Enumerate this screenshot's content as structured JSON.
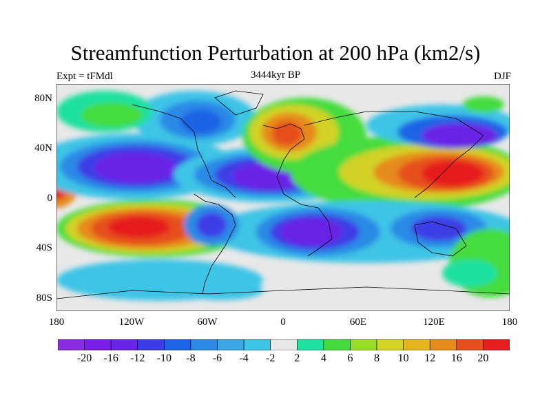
{
  "title": "Streamfunction Perturbation at 200 hPa (km2/s)",
  "left_label": "Expt = tFMdl",
  "center_label": "3444kyr BP",
  "right_label": "DJF",
  "lat_ticks": [
    "80N",
    "40N",
    "0",
    "40S",
    "80S"
  ],
  "lon_ticks": [
    "180",
    "120W",
    "60W",
    "0",
    "60E",
    "120E",
    "180"
  ],
  "colorbar": {
    "colors": [
      "#8a2be2",
      "#7a1ee6",
      "#6a24e6",
      "#3c3ce6",
      "#1e64e6",
      "#2a8ae6",
      "#3aa6e6",
      "#3cc4e6",
      "#e8e8e8",
      "#1ee0a0",
      "#44dc3c",
      "#96dc28",
      "#d2d228",
      "#e6b41e",
      "#e68a1e",
      "#e6501e",
      "#e61e1e"
    ],
    "labels": [
      "-20",
      "-16",
      "-12",
      "-10",
      "-8",
      "-6",
      "-4",
      "-2",
      "2",
      "4",
      "6",
      "8",
      "10",
      "12",
      "16",
      "20"
    ]
  },
  "map_background": "#e8e8e8"
}
